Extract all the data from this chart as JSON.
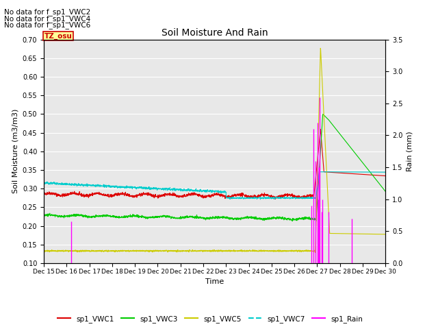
{
  "title": "Soil Moisture And Rain",
  "ylabel_left": "Soil Moisture (m3/m3)",
  "ylabel_right": "Rain (mm)",
  "xlabel": "Time",
  "ylim_left": [
    0.1,
    0.7
  ],
  "ylim_right": [
    0.0,
    3.5
  ],
  "background_color": "#e8e8e8",
  "no_data_texts": [
    "No data for f_sp1_VWC2",
    "No data for f_sp1_VWC4",
    "No data for f_sp1_VWC6"
  ],
  "tz_label": "TZ_osu",
  "tz_color": "#cc0000",
  "tz_bg": "#ffff99",
  "color_vwc1": "#dd0000",
  "color_vwc3": "#00cc00",
  "color_vwc5": "#cccc00",
  "color_vwc7": "#00cccc",
  "color_rain": "#ff00ff",
  "x_tick_labels": [
    "Dec 15",
    "Dec 16",
    "Dec 17",
    "Dec 18",
    "Dec 19",
    "Dec 20",
    "Dec 21",
    "Dec 22",
    "Dec 23",
    "Dec 24",
    "Dec 25",
    "Dec 26",
    "Dec 27",
    "Dec 28",
    "Dec 29",
    "Dec 30"
  ],
  "num_points": 2000,
  "figsize": [
    6.4,
    4.8
  ],
  "dpi": 100
}
